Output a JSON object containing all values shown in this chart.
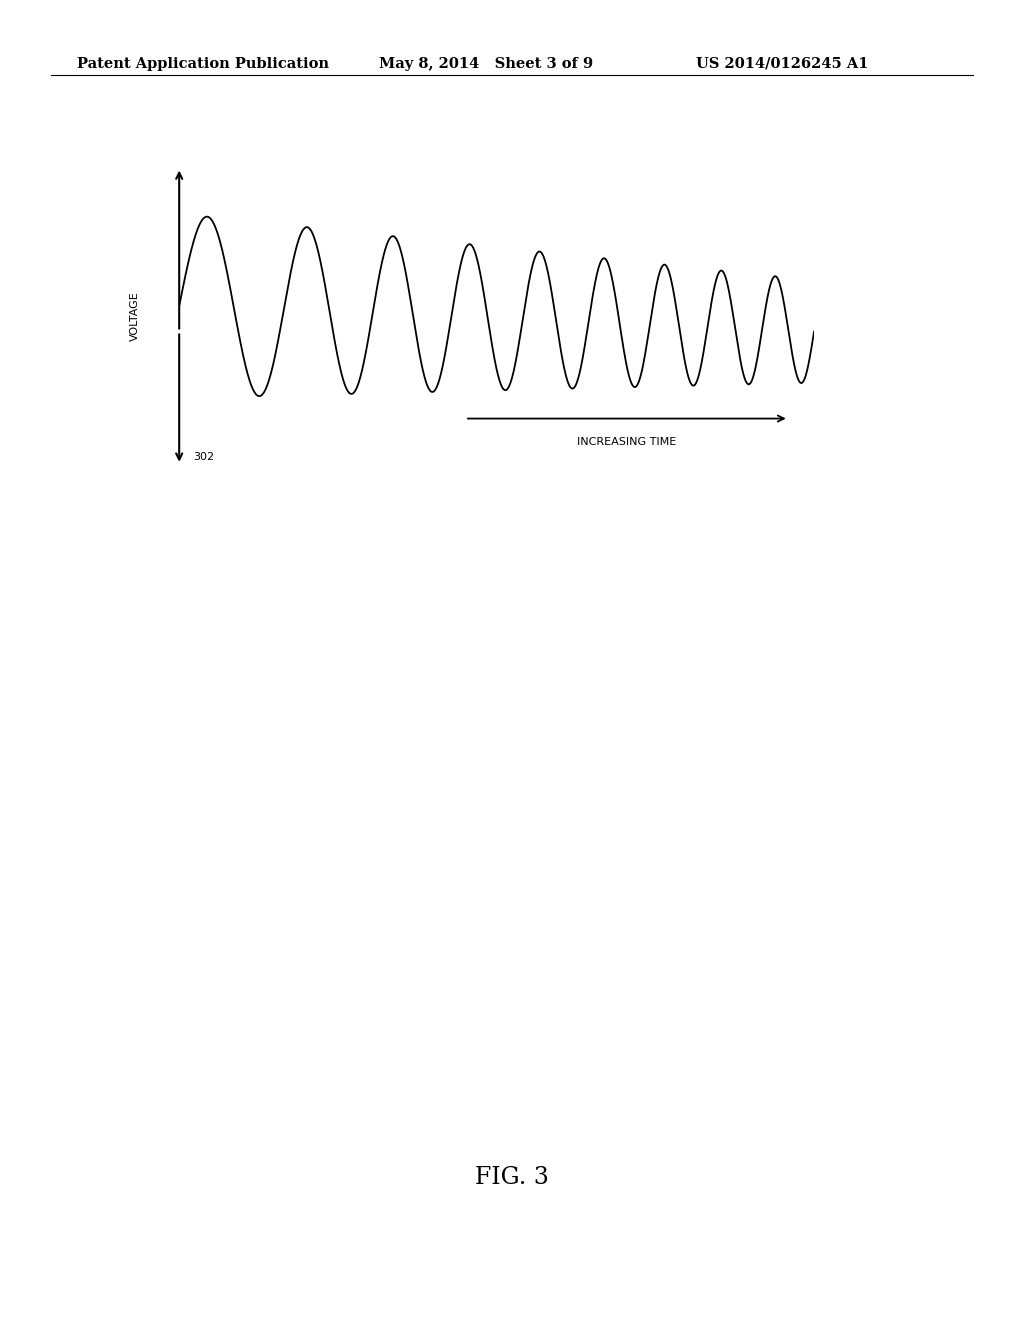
{
  "header_left": "Patent Application Publication",
  "header_mid": "May 8, 2014   Sheet 3 of 9",
  "header_right": "US 2014/0126245 A1",
  "fig_label": "FIG. 3",
  "voltage_label": "VOLTAGE",
  "time_label": "INCREASING TIME",
  "ref_label": "302",
  "background_color": "#ffffff",
  "line_color": "#000000",
  "header_fontsize": 10.5,
  "fig_label_fontsize": 17,
  "axis_label_fontsize": 8,
  "ref_fontsize": 8
}
